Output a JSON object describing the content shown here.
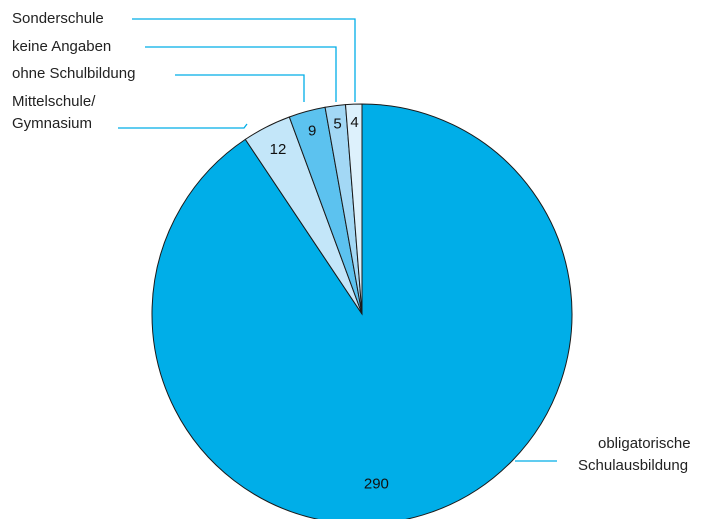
{
  "chart_data": {
    "type": "pie",
    "start": "top",
    "direction": "clockwise",
    "slices": [
      {
        "label": "obligatorische Schulausbildung",
        "label_lines": [
          "obligatorische",
          "Schulausbildung"
        ],
        "value": 290,
        "color": "#00aee8"
      },
      {
        "label": "Mittelschule/ Gymnasium",
        "label_lines": [
          "Mittelschule/",
          "Gymnasium"
        ],
        "value": 12,
        "color": "#c3e6f9"
      },
      {
        "label": "ohne Schulbildung",
        "label_lines": [
          "ohne Schulbildung"
        ],
        "value": 9,
        "color": "#5cc2ef"
      },
      {
        "label": "keine Angaben",
        "label_lines": [
          "keine Angaben"
        ],
        "value": 5,
        "color": "#a3d8f5"
      },
      {
        "label": "Sonderschule",
        "label_lines": [
          "Sonderschule"
        ],
        "value": 4,
        "color": "#ddf1fc"
      }
    ],
    "leader_color": "#00aee8"
  }
}
